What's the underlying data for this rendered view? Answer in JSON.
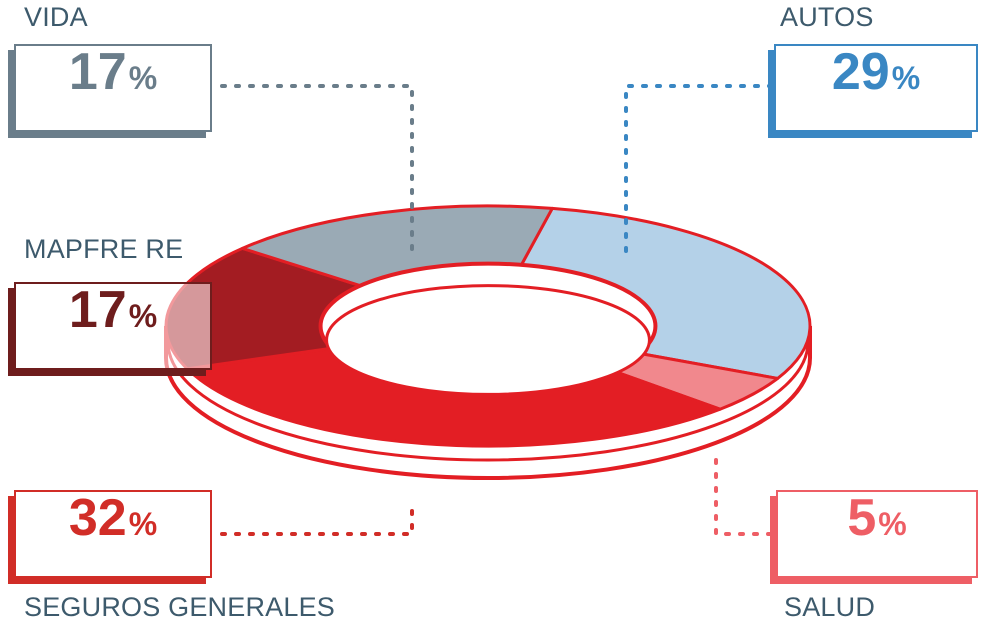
{
  "chart_data": {
    "type": "pie",
    "donut": true,
    "slices": [
      {
        "key": "autos",
        "label": "AUTOS",
        "value": 29,
        "unit": "%",
        "color": "#b4d1e8",
        "text_color": "#3a87c3"
      },
      {
        "key": "salud",
        "label": "SALUD",
        "value": 5,
        "unit": "%",
        "color": "#f1888d",
        "text_color": "#ee5e65"
      },
      {
        "key": "seguros",
        "label": "SEGUROS GENERALES",
        "value": 32,
        "unit": "%",
        "color": "#e31e24",
        "text_color": "#d12d27"
      },
      {
        "key": "mapfre",
        "label": "MAPFRE RE",
        "value": 17,
        "unit": "%",
        "color": "#a31c22",
        "text_color": "#6e1d1d"
      },
      {
        "key": "vida",
        "label": "VIDA",
        "value": 17,
        "unit": "%",
        "color": "#9aaab5",
        "text_color": "#6a7d8a"
      }
    ],
    "outline_color": "#e31e24",
    "label_color": "#3d5a6c"
  }
}
